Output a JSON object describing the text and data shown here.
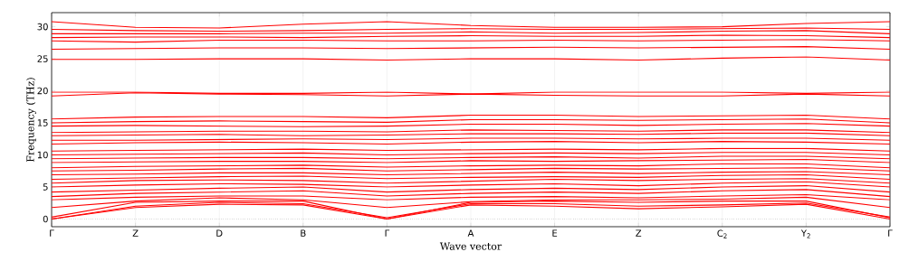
{
  "chart_data": {
    "type": "line",
    "xlabel": "Wave vector",
    "ylabel": "Frequency (THz)",
    "ylim": [
      -1.2,
      32.2
    ],
    "categories": [
      "Γ",
      "Z",
      "D",
      "B",
      "Γ",
      "A",
      "E",
      "Z",
      "C$_{2}$",
      "Y$_{2}$",
      "Γ"
    ],
    "yticks": [
      0,
      5,
      10,
      15,
      20,
      25,
      30
    ],
    "grid": "x",
    "marker": "none",
    "line_style": "solid",
    "ref_lines": [
      {
        "axis": "y",
        "value": 0,
        "line_style": "dotted",
        "color": "#000000"
      }
    ],
    "series": [
      {
        "color": "#ff0000",
        "values": [
          0,
          1.8,
          2.3,
          2.2,
          0,
          2.2,
          2.0,
          1.6,
          1.9,
          2.3,
          0
        ]
      },
      {
        "color": "#ff0000",
        "values": [
          0,
          2.0,
          2.6,
          2.4,
          0.2,
          2.4,
          2.4,
          2.0,
          2.2,
          2.5,
          0.3
        ]
      },
      {
        "color": "#ff0000",
        "values": [
          0.3,
          2.6,
          2.8,
          2.8,
          0,
          2.6,
          2.8,
          2.6,
          2.8,
          2.8,
          0.2
        ]
      },
      {
        "color": "#ff0000",
        "values": [
          1.8,
          2.8,
          3.3,
          3.0,
          1.8,
          2.7,
          3.0,
          3.0,
          3.1,
          3.4,
          1.8
        ]
      },
      {
        "color": "#ff0000",
        "values": [
          3.0,
          3.4,
          3.6,
          3.6,
          3.0,
          3.4,
          3.5,
          3.3,
          3.6,
          3.8,
          3.0
        ]
      },
      {
        "color": "#ff0000",
        "values": [
          3.5,
          4.0,
          4.2,
          4.4,
          3.6,
          4.0,
          4.2,
          4.0,
          4.4,
          4.6,
          3.5
        ]
      },
      {
        "color": "#ff0000",
        "values": [
          4.2,
          4.5,
          4.8,
          5.0,
          4.2,
          4.6,
          4.8,
          4.6,
          5.0,
          5.2,
          4.2
        ]
      },
      {
        "color": "#ff0000",
        "values": [
          5.0,
          5.3,
          5.5,
          5.4,
          5.0,
          5.3,
          5.5,
          5.2,
          5.6,
          5.8,
          5.0
        ]
      },
      {
        "color": "#ff0000",
        "values": [
          5.6,
          6.0,
          6.1,
          6.0,
          5.6,
          5.9,
          6.2,
          6.0,
          6.2,
          6.3,
          5.6
        ]
      },
      {
        "color": "#ff0000",
        "values": [
          6.2,
          6.4,
          6.6,
          6.7,
          6.3,
          6.5,
          6.6,
          6.5,
          6.8,
          6.9,
          6.2
        ]
      },
      {
        "color": "#ff0000",
        "values": [
          6.9,
          7.0,
          7.2,
          7.2,
          6.9,
          7.1,
          7.3,
          7.1,
          7.3,
          7.4,
          6.9
        ]
      },
      {
        "color": "#ff0000",
        "values": [
          7.5,
          7.6,
          7.8,
          7.9,
          7.5,
          7.7,
          7.9,
          7.8,
          7.9,
          8.0,
          7.5
        ]
      },
      {
        "color": "#ff0000",
        "values": [
          8.0,
          8.2,
          8.3,
          8.4,
          8.1,
          8.3,
          8.4,
          8.3,
          8.6,
          8.6,
          8.0
        ]
      },
      {
        "color": "#ff0000",
        "values": [
          8.8,
          8.9,
          9.0,
          9.0,
          8.8,
          9.1,
          9.0,
          9.1,
          9.2,
          9.3,
          8.8
        ]
      },
      {
        "color": "#ff0000",
        "values": [
          9.4,
          9.5,
          9.6,
          9.6,
          9.4,
          9.6,
          9.7,
          9.5,
          9.8,
          9.8,
          9.4
        ]
      },
      {
        "color": "#ff0000",
        "values": [
          10.0,
          10.1,
          10.2,
          10.3,
          10.0,
          10.2,
          10.3,
          10.2,
          10.4,
          10.4,
          10.0
        ]
      },
      {
        "color": "#ff0000",
        "values": [
          10.6,
          10.7,
          10.8,
          10.9,
          10.7,
          10.8,
          10.9,
          10.8,
          11.0,
          11.0,
          10.6
        ]
      },
      {
        "color": "#ff0000",
        "values": [
          11.7,
          11.9,
          12.0,
          11.9,
          11.7,
          12.0,
          12.1,
          11.9,
          12.1,
          12.0,
          11.7
        ]
      },
      {
        "color": "#ff0000",
        "values": [
          12.3,
          12.3,
          12.4,
          12.5,
          12.4,
          12.6,
          12.6,
          12.5,
          12.6,
          12.6,
          12.3
        ]
      },
      {
        "color": "#ff0000",
        "values": [
          13.0,
          13.1,
          13.2,
          13.0,
          13.1,
          13.3,
          13.3,
          13.2,
          13.4,
          13.4,
          13.0
        ]
      },
      {
        "color": "#ff0000",
        "values": [
          13.5,
          13.6,
          13.7,
          13.7,
          13.6,
          13.9,
          13.8,
          13.7,
          13.9,
          13.9,
          13.5
        ]
      },
      {
        "color": "#ff0000",
        "values": [
          14.5,
          14.6,
          14.5,
          14.4,
          14.5,
          14.8,
          14.8,
          14.6,
          14.8,
          14.9,
          14.5
        ]
      },
      {
        "color": "#ff0000",
        "values": [
          15.0,
          15.2,
          15.3,
          15.2,
          15.1,
          15.5,
          15.5,
          15.4,
          15.5,
          15.6,
          15.0
        ]
      },
      {
        "color": "#ff0000",
        "values": [
          15.6,
          15.9,
          16.0,
          16.0,
          15.8,
          16.2,
          16.2,
          16.0,
          16.1,
          16.2,
          15.6
        ]
      },
      {
        "color": "#ff0000",
        "values": [
          19.2,
          19.7,
          19.5,
          19.4,
          19.2,
          19.5,
          19.3,
          19.2,
          19.2,
          19.5,
          19.2
        ]
      },
      {
        "color": "#ff0000",
        "values": [
          19.8,
          19.8,
          19.6,
          19.6,
          19.8,
          19.5,
          19.8,
          19.8,
          19.8,
          19.6,
          19.8
        ]
      },
      {
        "color": "#ff0000",
        "values": [
          24.9,
          24.9,
          25.0,
          25.0,
          24.8,
          25.0,
          25.0,
          24.8,
          25.1,
          25.3,
          24.8
        ]
      },
      {
        "color": "#ff0000",
        "values": [
          26.5,
          26.6,
          26.7,
          26.7,
          26.6,
          26.7,
          26.8,
          26.7,
          26.8,
          26.9,
          26.5
        ]
      },
      {
        "color": "#ff0000",
        "values": [
          27.8,
          27.6,
          27.9,
          27.9,
          27.8,
          27.8,
          27.9,
          27.8,
          27.9,
          28.0,
          27.8
        ]
      },
      {
        "color": "#ff0000",
        "values": [
          28.3,
          28.4,
          28.4,
          28.3,
          28.5,
          28.6,
          28.5,
          28.5,
          28.7,
          28.6,
          28.3
        ]
      },
      {
        "color": "#ff0000",
        "values": [
          28.9,
          28.9,
          28.9,
          29.0,
          29.0,
          29.2,
          29.0,
          29.1,
          29.3,
          29.4,
          28.9
        ]
      },
      {
        "color": "#ff0000",
        "values": [
          29.6,
          29.4,
          29.3,
          29.4,
          29.6,
          29.7,
          29.6,
          29.6,
          29.7,
          29.8,
          29.6
        ]
      },
      {
        "color": "#ff0000",
        "values": [
          30.8,
          29.9,
          29.8,
          30.4,
          30.8,
          30.2,
          29.9,
          29.9,
          30.0,
          30.5,
          30.8
        ]
      }
    ]
  }
}
